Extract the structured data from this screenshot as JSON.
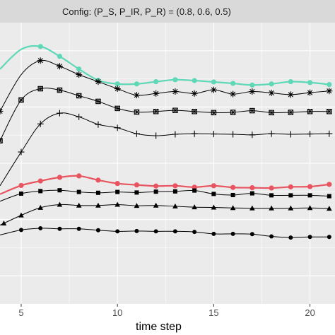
{
  "chart_data": {
    "type": "line",
    "facet_label": "Config: (P_S, P_IR, P_R) = (0.8, 0.6, 0.5)",
    "xlabel": "time step",
    "ylabel": "",
    "xlim": [
      3.9,
      21.3
    ],
    "ylim": [
      0,
      1
    ],
    "xticks": [
      5,
      10,
      15,
      20
    ],
    "grid": true,
    "legend": "none",
    "colors": {
      "panel": "#ebebeb",
      "grid": "#ffffff",
      "strip": "#d9d9d9",
      "black": "#000000",
      "teal": "#5fd8b8",
      "red": "#e8545f"
    },
    "series": [
      {
        "color": "#5fd8b8",
        "marker": "circle",
        "x": [
          3.9,
          5,
          6,
          7,
          8,
          9,
          10,
          11,
          12,
          13,
          14,
          15,
          16,
          17,
          18,
          19,
          20,
          21
        ],
        "y": [
          0.835,
          0.905,
          0.915,
          0.88,
          0.835,
          0.795,
          0.782,
          0.782,
          0.79,
          0.797,
          0.794,
          0.789,
          0.784,
          0.778,
          0.782,
          0.79,
          0.787,
          0.78
        ],
        "markers_x": [
          6,
          7,
          8,
          9,
          10,
          11,
          12,
          13,
          14,
          15,
          16,
          17,
          18,
          19,
          20,
          21
        ]
      },
      {
        "color": "#000000",
        "marker": "asterisk",
        "x": [
          3.9,
          5,
          6,
          7,
          8,
          9,
          10,
          11,
          12,
          13,
          14,
          15,
          16,
          17,
          18,
          19,
          20,
          21
        ],
        "y": [
          0.685,
          0.815,
          0.865,
          0.845,
          0.815,
          0.79,
          0.765,
          0.742,
          0.748,
          0.755,
          0.748,
          0.761,
          0.746,
          0.755,
          0.75,
          0.744,
          0.751,
          0.757
        ],
        "markers_x": [
          3.9,
          6,
          7,
          8,
          9,
          10,
          11,
          12,
          13,
          14,
          15,
          16,
          17,
          18,
          19,
          20,
          21
        ]
      },
      {
        "color": "#000000",
        "marker": "square-cross",
        "x": [
          3.9,
          5,
          6,
          7,
          8,
          9,
          10,
          11,
          12,
          13,
          14,
          15,
          16,
          17,
          18,
          19,
          20,
          21
        ],
        "y": [
          0.58,
          0.725,
          0.765,
          0.76,
          0.74,
          0.72,
          0.695,
          0.682,
          0.684,
          0.688,
          0.684,
          0.68,
          0.681,
          0.687,
          0.68,
          0.681,
          0.684,
          0.684
        ],
        "markers_x": [
          3.9,
          5,
          6,
          7,
          8,
          9,
          10,
          11,
          12,
          13,
          14,
          15,
          16,
          17,
          18,
          19,
          20,
          21
        ]
      },
      {
        "color": "#000000",
        "marker": "plus",
        "x": [
          3.9,
          5,
          6,
          7,
          8,
          9,
          10,
          11,
          12,
          13,
          14,
          15,
          16,
          17,
          18,
          19,
          20,
          21
        ],
        "y": [
          0.42,
          0.54,
          0.64,
          0.678,
          0.665,
          0.638,
          0.626,
          0.605,
          0.598,
          0.603,
          0.605,
          0.604,
          0.603,
          0.601,
          0.605,
          0.603,
          0.604,
          0.605
        ],
        "markers_x": [
          5,
          6,
          7,
          8,
          9,
          10,
          11,
          12,
          13,
          14,
          15,
          16,
          17,
          18,
          19,
          20,
          21
        ]
      },
      {
        "color": "#e8545f",
        "marker": "circle",
        "x": [
          3.9,
          5,
          6,
          7,
          8,
          9,
          10,
          11,
          12,
          13,
          14,
          15,
          16,
          17,
          18,
          19,
          20,
          21
        ],
        "y": [
          0.39,
          0.421,
          0.437,
          0.45,
          0.455,
          0.44,
          0.428,
          0.423,
          0.419,
          0.42,
          0.415,
          0.42,
          0.414,
          0.413,
          0.412,
          0.416,
          0.417,
          0.425
        ],
        "markers_x": [
          5,
          6,
          7,
          8,
          9,
          10,
          11,
          12,
          13,
          14,
          15,
          16,
          17,
          18,
          19,
          20,
          21
        ]
      },
      {
        "color": "#000000",
        "marker": "square",
        "x": [
          3.9,
          5,
          6,
          7,
          8,
          9,
          10,
          11,
          12,
          13,
          14,
          15,
          16,
          17,
          18,
          19,
          20,
          21
        ],
        "y": [
          0.365,
          0.392,
          0.401,
          0.404,
          0.398,
          0.395,
          0.398,
          0.396,
          0.399,
          0.4,
          0.403,
          0.391,
          0.387,
          0.393,
          0.386,
          0.386,
          0.386,
          0.383
        ],
        "markers_x": [
          5,
          6,
          7,
          8,
          9,
          10,
          11,
          12,
          13,
          14,
          15,
          16,
          17,
          18,
          19,
          20,
          21
        ]
      },
      {
        "color": "#000000",
        "marker": "triangle",
        "x": [
          3.9,
          5,
          6,
          7,
          8,
          9,
          10,
          11,
          12,
          13,
          14,
          15,
          16,
          17,
          18,
          19,
          20,
          21
        ],
        "y": [
          0.28,
          0.315,
          0.342,
          0.353,
          0.35,
          0.35,
          0.353,
          0.349,
          0.35,
          0.347,
          0.344,
          0.343,
          0.341,
          0.34,
          0.34,
          0.34,
          0.341,
          0.339
        ],
        "markers_x": [
          4.1,
          5,
          6,
          7,
          8,
          9,
          10,
          11,
          12,
          13,
          14,
          15,
          16,
          17,
          18,
          19,
          20,
          21
        ]
      },
      {
        "color": "#000000",
        "marker": "circle",
        "x": [
          3.9,
          5,
          6,
          7,
          8,
          9,
          10,
          11,
          12,
          13,
          14,
          15,
          16,
          17,
          18,
          19,
          20,
          21
        ],
        "y": [
          0.245,
          0.263,
          0.269,
          0.267,
          0.267,
          0.262,
          0.258,
          0.259,
          0.258,
          0.258,
          0.256,
          0.249,
          0.249,
          0.248,
          0.24,
          0.236,
          0.238,
          0.238
        ],
        "markers_x": [
          5,
          6,
          7,
          8,
          9,
          10,
          11,
          12,
          13,
          14,
          15,
          16,
          17,
          18,
          19,
          20,
          21
        ]
      }
    ]
  }
}
